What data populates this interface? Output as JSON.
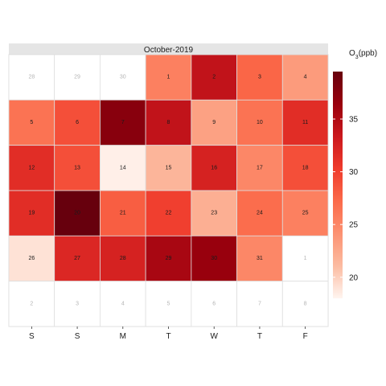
{
  "chart_data": {
    "type": "heatmap",
    "title": "October-2019",
    "weekdays": [
      "S",
      "S",
      "M",
      "T",
      "W",
      "T",
      "F"
    ],
    "legend": {
      "title_main": "O",
      "title_sub": "3",
      "title_unit": "(ppb)",
      "ticks": [
        20,
        25,
        30,
        35
      ],
      "min": 18,
      "max": 39.5,
      "colors": [
        "#fff5f0",
        "#fcbba1",
        "#fc9272",
        "#fb6a4a",
        "#ef3b2c",
        "#cb181d",
        "#99000d",
        "#67000d"
      ]
    },
    "weeks": [
      [
        {
          "day": "28",
          "in_month": false,
          "value": null
        },
        {
          "day": "29",
          "in_month": false,
          "value": null
        },
        {
          "day": "30",
          "in_month": false,
          "value": null
        },
        {
          "day": "1",
          "in_month": true,
          "value": 25.5
        },
        {
          "day": "2",
          "in_month": true,
          "value": 34.0
        },
        {
          "day": "3",
          "in_month": true,
          "value": 27.5
        },
        {
          "day": "4",
          "in_month": true,
          "value": 23.5
        }
      ],
      [
        {
          "day": "5",
          "in_month": true,
          "value": 26.5
        },
        {
          "day": "6",
          "in_month": true,
          "value": 29.0
        },
        {
          "day": "7",
          "in_month": true,
          "value": 37.5
        },
        {
          "day": "8",
          "in_month": true,
          "value": 34.0
        },
        {
          "day": "9",
          "in_month": true,
          "value": 23.0
        },
        {
          "day": "10",
          "in_month": true,
          "value": 26.5
        },
        {
          "day": "11",
          "in_month": true,
          "value": 31.5
        }
      ],
      [
        {
          "day": "12",
          "in_month": true,
          "value": 31.5
        },
        {
          "day": "13",
          "in_month": true,
          "value": 29.0
        },
        {
          "day": "14",
          "in_month": true,
          "value": 18.3
        },
        {
          "day": "15",
          "in_month": true,
          "value": 21.5
        },
        {
          "day": "16",
          "in_month": true,
          "value": 32.5
        },
        {
          "day": "17",
          "in_month": true,
          "value": 25.0
        },
        {
          "day": "18",
          "in_month": true,
          "value": 29.0
        }
      ],
      [
        {
          "day": "19",
          "in_month": true,
          "value": 31.5
        },
        {
          "day": "20",
          "in_month": true,
          "value": 39.5
        },
        {
          "day": "21",
          "in_month": true,
          "value": 28.0
        },
        {
          "day": "22",
          "in_month": true,
          "value": 30.0
        },
        {
          "day": "23",
          "in_month": true,
          "value": 22.0
        },
        {
          "day": "24",
          "in_month": true,
          "value": 27.0
        },
        {
          "day": "25",
          "in_month": true,
          "value": 25.5
        }
      ],
      [
        {
          "day": "26",
          "in_month": true,
          "value": 19.0
        },
        {
          "day": "27",
          "in_month": true,
          "value": 32.0
        },
        {
          "day": "28",
          "in_month": true,
          "value": 32.5
        },
        {
          "day": "29",
          "in_month": true,
          "value": 35.5
        },
        {
          "day": "30",
          "in_month": true,
          "value": 36.5
        },
        {
          "day": "31",
          "in_month": true,
          "value": 25.0
        },
        {
          "day": "1",
          "in_month": false,
          "value": null
        }
      ],
      [
        {
          "day": "2",
          "in_month": false,
          "value": null
        },
        {
          "day": "3",
          "in_month": false,
          "value": null
        },
        {
          "day": "4",
          "in_month": false,
          "value": null
        },
        {
          "day": "5",
          "in_month": false,
          "value": null
        },
        {
          "day": "6",
          "in_month": false,
          "value": null
        },
        {
          "day": "7",
          "in_month": false,
          "value": null
        },
        {
          "day": "8",
          "in_month": false,
          "value": null
        }
      ]
    ]
  }
}
